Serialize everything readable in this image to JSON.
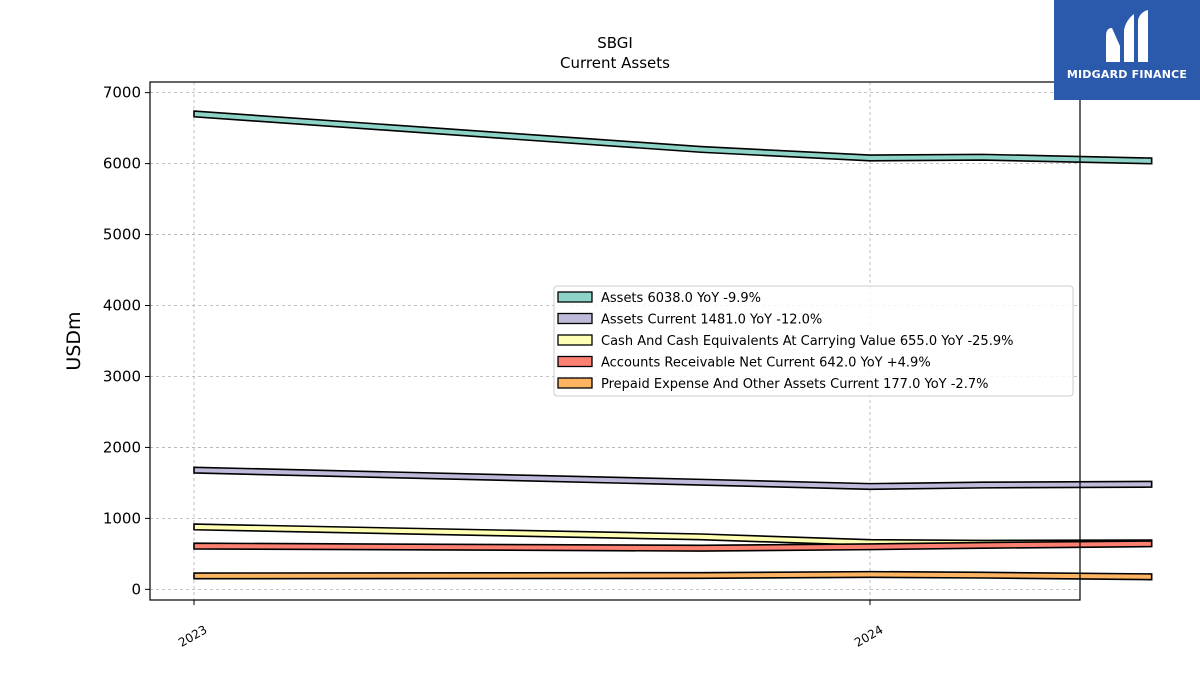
{
  "chart_data": {
    "type": "area",
    "title": "SBGI",
    "subtitle": "Current  Assets",
    "ylabel": "USDm",
    "xlabel": "",
    "ylim": [
      -150,
      7150
    ],
    "yticks": [
      0,
      1000,
      2000,
      3000,
      4000,
      5000,
      6000,
      7000
    ],
    "x": [
      "2023-01",
      "2023-10",
      "2024-01",
      "2024-03",
      "2024-06"
    ],
    "xticks": [
      "2023",
      "2024"
    ],
    "grid": true,
    "legend_position": "center-right",
    "series": [
      {
        "name": "Assets",
        "legend": "Assets  6038.0 YoY -9.9%",
        "color": "#8dd3c7",
        "values": [
          6700,
          6200,
          6080,
          6090,
          6038
        ]
      },
      {
        "name": "Assets Current",
        "legend": "Assets Current  1481.0 YoY -12.0%",
        "color": "#bebada",
        "values": [
          1680,
          1510,
          1450,
          1470,
          1481
        ]
      },
      {
        "name": "Cash And Cash Equivalents At Carrying Value",
        "legend": "Cash And Cash Equivalents At Carrying Value  655.0 YoY -25.9%",
        "color": "#ffffb3",
        "values": [
          880,
          740,
          660,
          650,
          655
        ]
      },
      {
        "name": "Accounts Receivable Net Current",
        "legend": "Accounts Receivable Net Current  642.0 YoY +4.9%",
        "color": "#fb8072",
        "values": [
          610,
          580,
          600,
          620,
          642
        ]
      },
      {
        "name": "Prepaid Expense And Other Assets Current",
        "legend": "Prepaid Expense And Other Assets Current  177.0 YoY -2.7%",
        "color": "#fdb462",
        "values": [
          190,
          195,
          210,
          200,
          177
        ]
      }
    ]
  },
  "logo": {
    "text": "MIDGARD FINANCE"
  }
}
